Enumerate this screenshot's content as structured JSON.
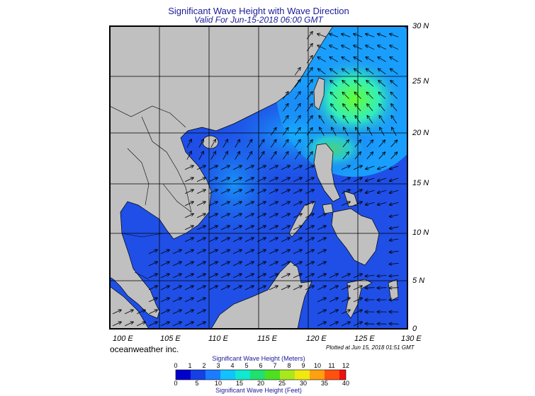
{
  "header": {
    "title": "Significant Wave Height with Wave Direction",
    "subtitle": "Valid For Jun-15-2018 06:00 GMT"
  },
  "map": {
    "lat_labels": [
      "30 N",
      "25 N",
      "20 N",
      "15 N",
      "10 N",
      "5 N",
      "0"
    ],
    "lon_labels": [
      "100 E",
      "105 E",
      "110 E",
      "115 E",
      "120 E",
      "125 E",
      "130 E"
    ],
    "land_color": "#c0c0c0",
    "ocean_base_color": "#1f4fe6",
    "high_wave_color": "#66ff33"
  },
  "footer": {
    "credit": "oceanweather inc.",
    "plot_time": "Plotted at Jun 15, 2018 01:51 GMT"
  },
  "legend": {
    "meters_title": "Significant Wave Height (Meters)",
    "feet_title": "Significant Wave Height (Feet)",
    "meters_ticks": [
      "0",
      "1",
      "2",
      "3",
      "4",
      "5",
      "6",
      "7",
      "8",
      "9",
      "10",
      "11",
      "12"
    ],
    "feet_ticks": [
      "0",
      "5",
      "10",
      "15",
      "20",
      "25",
      "30",
      "35",
      "40"
    ]
  }
}
